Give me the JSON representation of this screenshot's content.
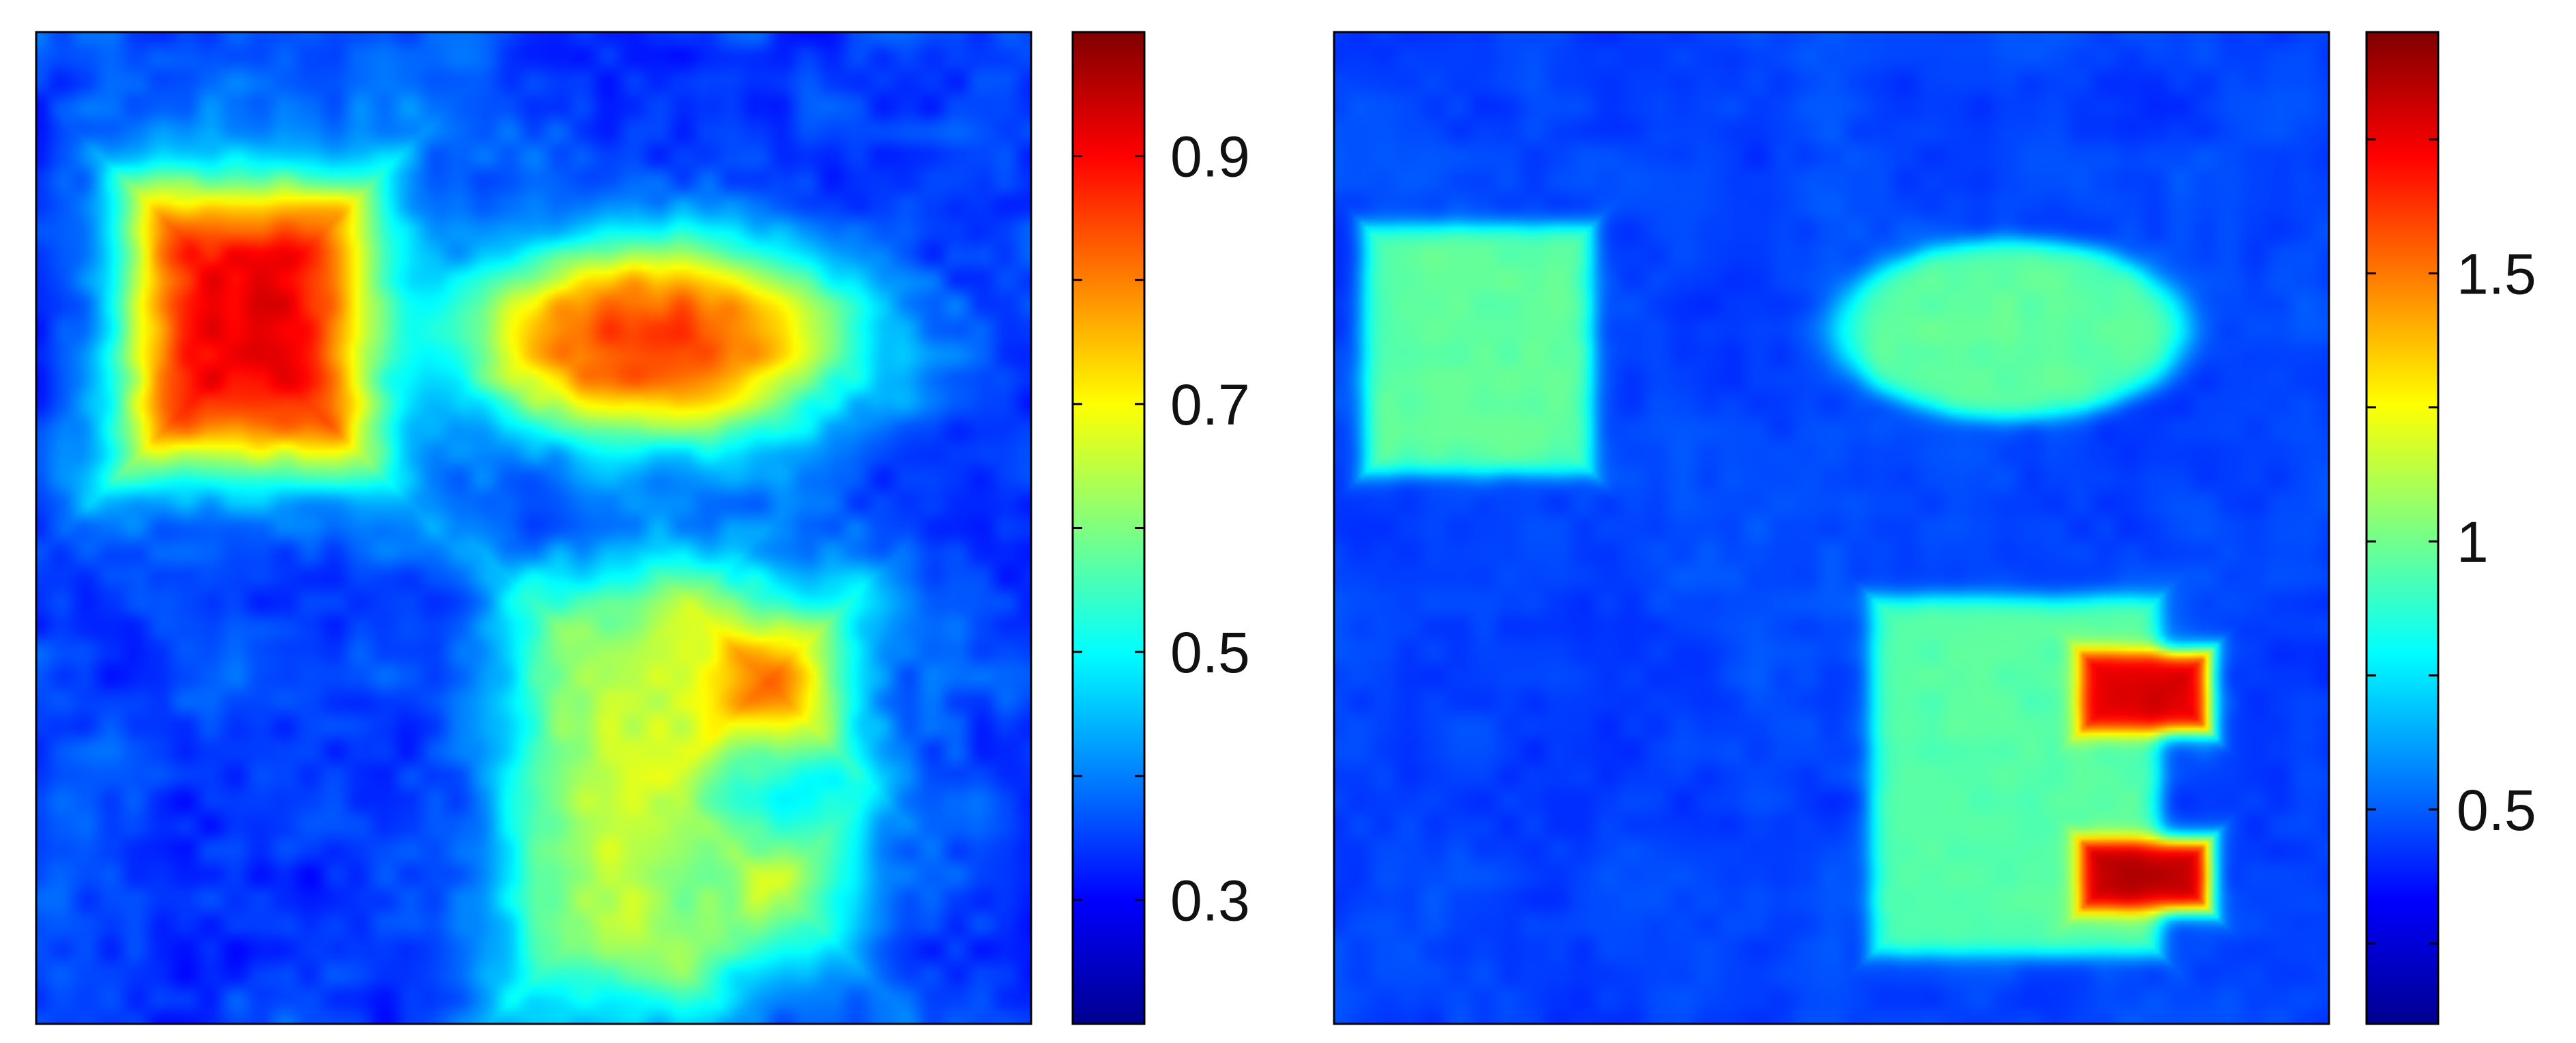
{
  "chart_data": [
    {
      "type": "heatmap",
      "colormap": "jet",
      "title": "",
      "xlabel": "",
      "ylabel": "",
      "xticks": [],
      "yticks": [],
      "colorbar": {
        "range": [
          0.2,
          1.0
        ],
        "ticks": [
          0.3,
          0.4,
          0.5,
          0.6,
          0.7,
          0.8,
          0.9
        ],
        "tick_labels": [
          "0.3",
          "0.5",
          "0.7",
          "0.9"
        ],
        "tick_label_values": [
          0.3,
          0.5,
          0.7,
          0.9
        ]
      },
      "background_value": 0.35,
      "shapes": [
        {
          "name": "square",
          "kind": "rect",
          "value": 0.93,
          "center": [
            0.215,
            0.705
          ],
          "half_size": [
            0.115,
            0.135
          ],
          "blur": 0.025
        },
        {
          "name": "ellipse",
          "kind": "ellipse",
          "value": 0.88,
          "center": [
            0.62,
            0.69
          ],
          "half_size": [
            0.17,
            0.09
          ],
          "blur": 0.025
        },
        {
          "name": "e-shape-body",
          "kind": "rect",
          "value": 0.66,
          "center": [
            0.58,
            0.235
          ],
          "half_size": [
            0.095,
            0.205
          ],
          "blur": 0.03
        },
        {
          "name": "e-shape-upper-arm",
          "kind": "rect",
          "value": 0.88,
          "center": [
            0.735,
            0.345
          ],
          "half_size": [
            0.06,
            0.06
          ],
          "blur": 0.03
        },
        {
          "name": "e-shape-lower-arm",
          "kind": "rect",
          "value": 0.7,
          "center": [
            0.74,
            0.14
          ],
          "half_size": [
            0.06,
            0.055
          ],
          "blur": 0.03
        }
      ]
    },
    {
      "type": "heatmap",
      "colormap": "jet",
      "title": "",
      "xlabel": "",
      "ylabel": "",
      "xticks": [],
      "yticks": [],
      "colorbar": {
        "range": [
          0.1,
          1.95
        ],
        "ticks": [
          0.25,
          0.5,
          0.75,
          1.0,
          1.25,
          1.5,
          1.75
        ],
        "tick_labels": [
          "0.5",
          "1",
          "1.5"
        ],
        "tick_label_values": [
          0.5,
          1.0,
          1.5
        ]
      },
      "background_value": 0.45,
      "shapes": [
        {
          "name": "square",
          "kind": "rect",
          "value": 0.97,
          "center": [
            0.145,
            0.68
          ],
          "half_size": [
            0.115,
            0.125
          ],
          "blur": 0.006
        },
        {
          "name": "ellipse",
          "kind": "ellipse",
          "value": 0.97,
          "center": [
            0.68,
            0.7
          ],
          "half_size": [
            0.175,
            0.09
          ],
          "blur": 0.006
        },
        {
          "name": "e-shape-body",
          "kind": "rect",
          "value": 0.95,
          "center": [
            0.685,
            0.25
          ],
          "half_size": [
            0.145,
            0.18
          ],
          "blur": 0.006
        },
        {
          "name": "e-shape-upper-arm",
          "kind": "rect",
          "value": 1.8,
          "center": [
            0.815,
            0.335
          ],
          "half_size": [
            0.065,
            0.04
          ],
          "blur": 0.006
        },
        {
          "name": "e-shape-lower-arm",
          "kind": "rect",
          "value": 1.85,
          "center": [
            0.815,
            0.15
          ],
          "half_size": [
            0.065,
            0.035
          ],
          "blur": 0.006
        }
      ]
    }
  ]
}
